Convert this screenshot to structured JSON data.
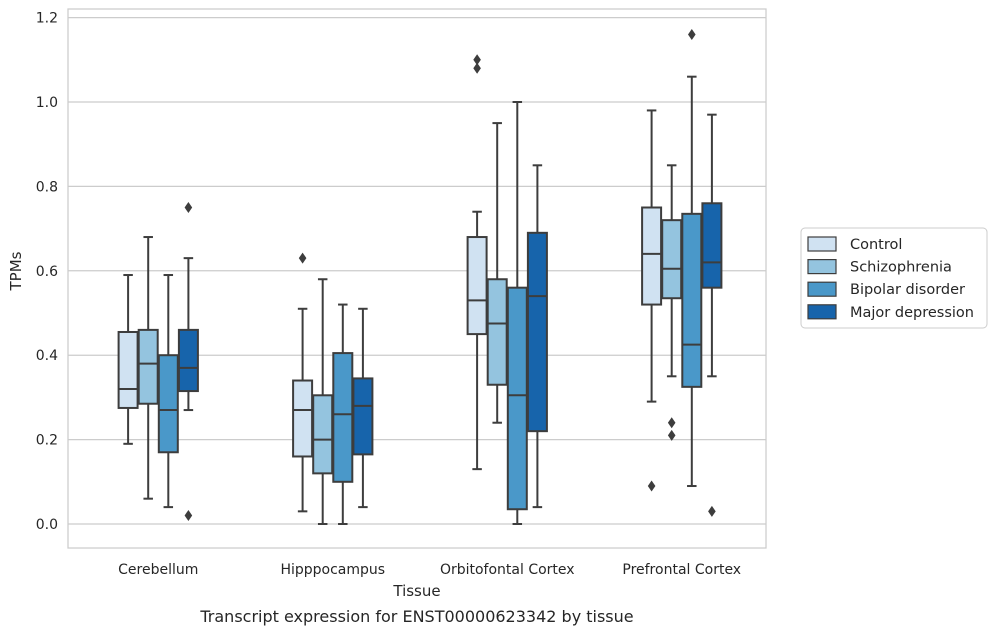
{
  "chart_data": {
    "type": "box",
    "title": "",
    "caption": "Transcript expression for ENST00000623342 by tissue",
    "xlabel": "Tissue",
    "ylabel": "TPMs",
    "ylim": [
      -0.055,
      1.22
    ],
    "yticks": [
      0.0,
      0.2,
      0.4,
      0.6,
      0.8,
      1.0,
      1.2
    ],
    "ytick_labels": [
      "0.0",
      "0.2",
      "0.4",
      "0.6",
      "0.8",
      "1.0",
      "1.2"
    ],
    "grid": "horizontal",
    "legend_position": "right",
    "categories": [
      "Cerebellum",
      "Hipppocampus",
      "Orbitofontal Cortex",
      "Prefrontal Cortex"
    ],
    "series": [
      {
        "name": "Control",
        "color": "#d0e2f2",
        "boxes": [
          {
            "whislo": 0.19,
            "q1": 0.275,
            "med": 0.32,
            "q3": 0.455,
            "whishi": 0.59,
            "fliers": []
          },
          {
            "whislo": 0.03,
            "q1": 0.16,
            "med": 0.27,
            "q3": 0.34,
            "whishi": 0.51,
            "fliers": [
              0.63
            ]
          },
          {
            "whislo": 0.13,
            "q1": 0.45,
            "med": 0.53,
            "q3": 0.68,
            "whishi": 0.74,
            "fliers": [
              1.08,
              1.1
            ]
          },
          {
            "whislo": 0.29,
            "q1": 0.52,
            "med": 0.64,
            "q3": 0.75,
            "whishi": 0.98,
            "fliers": [
              0.09
            ]
          }
        ]
      },
      {
        "name": "Schizophrenia",
        "color": "#94c4df",
        "boxes": [
          {
            "whislo": 0.06,
            "q1": 0.285,
            "med": 0.38,
            "q3": 0.46,
            "whishi": 0.68,
            "fliers": []
          },
          {
            "whislo": 0.0,
            "q1": 0.12,
            "med": 0.2,
            "q3": 0.305,
            "whishi": 0.58,
            "fliers": []
          },
          {
            "whislo": 0.24,
            "q1": 0.33,
            "med": 0.475,
            "q3": 0.58,
            "whishi": 0.95,
            "fliers": []
          },
          {
            "whislo": 0.35,
            "q1": 0.535,
            "med": 0.605,
            "q3": 0.72,
            "whishi": 0.85,
            "fliers": [
              0.24,
              0.21
            ]
          }
        ]
      },
      {
        "name": "Bipolar disorder",
        "color": "#4a98c9",
        "boxes": [
          {
            "whislo": 0.04,
            "q1": 0.17,
            "med": 0.27,
            "q3": 0.4,
            "whishi": 0.59,
            "fliers": []
          },
          {
            "whislo": 0.0,
            "q1": 0.1,
            "med": 0.26,
            "q3": 0.405,
            "whishi": 0.52,
            "fliers": []
          },
          {
            "whislo": 0.0,
            "q1": 0.035,
            "med": 0.305,
            "q3": 0.56,
            "whishi": 1.0,
            "fliers": []
          },
          {
            "whislo": 0.09,
            "q1": 0.325,
            "med": 0.425,
            "q3": 0.735,
            "whishi": 1.06,
            "fliers": [
              1.16
            ]
          }
        ]
      },
      {
        "name": "Major depression",
        "color": "#1764ab",
        "boxes": [
          {
            "whislo": 0.27,
            "q1": 0.315,
            "med": 0.37,
            "q3": 0.46,
            "whishi": 0.63,
            "fliers": [
              0.75,
              0.02
            ]
          },
          {
            "whislo": 0.04,
            "q1": 0.165,
            "med": 0.28,
            "q3": 0.345,
            "whishi": 0.51,
            "fliers": []
          },
          {
            "whislo": 0.04,
            "q1": 0.22,
            "med": 0.54,
            "q3": 0.69,
            "whishi": 0.85,
            "fliers": []
          },
          {
            "whislo": 0.35,
            "q1": 0.56,
            "med": 0.62,
            "q3": 0.76,
            "whishi": 0.97,
            "fliers": [
              0.03
            ]
          }
        ]
      }
    ]
  }
}
